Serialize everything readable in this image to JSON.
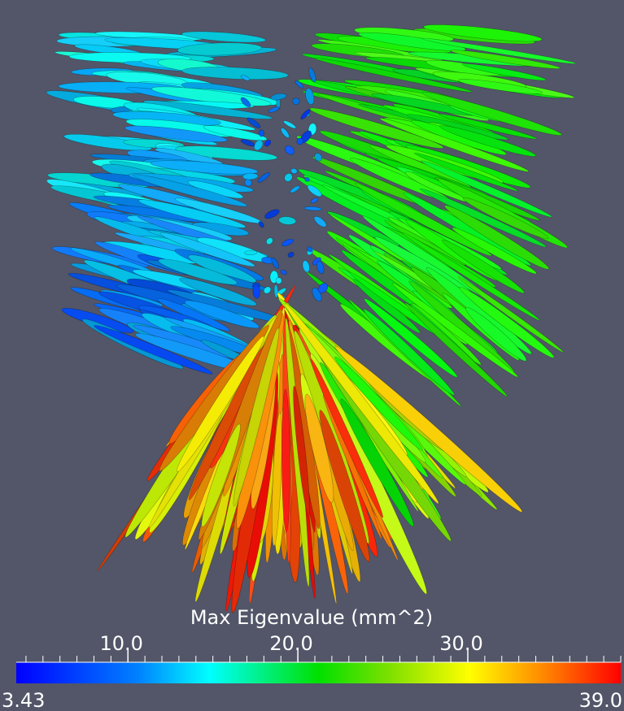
{
  "colorbar": {
    "title": "Max Eigenvalue (mm^2)",
    "min": 3.43,
    "max": {
      "value": 39.0,
      "label": "39.0"
    },
    "ticks": [
      {
        "value": 10,
        "label": "10.0"
      },
      {
        "value": 20,
        "label": "20.0"
      },
      {
        "value": 30,
        "label": "30.0"
      }
    ]
  }
}
